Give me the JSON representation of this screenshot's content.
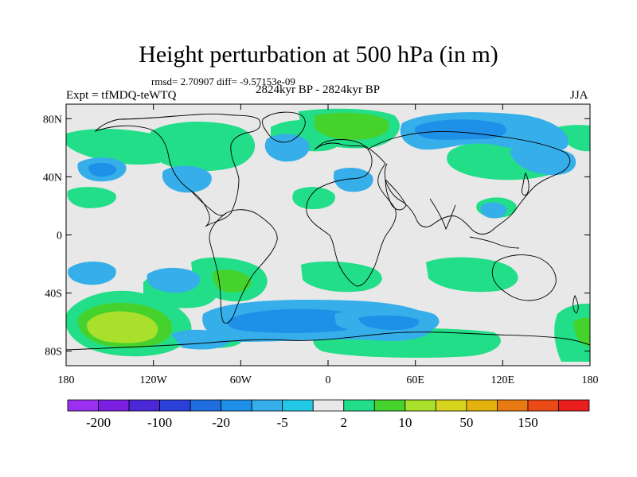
{
  "title": "Height perturbation at 500 hPa (in m)",
  "stats": "rmsd= 2.70907 diff= -9.57153e-09",
  "experiment": "Expt = tfMDQ-teWTQ",
  "period": "2824kyr BP - 2824kyr BP",
  "season": "JJA",
  "axes": {
    "x_ticks": [
      {
        "value": -180,
        "label": "180"
      },
      {
        "value": -120,
        "label": "120W"
      },
      {
        "value": -60,
        "label": "60W"
      },
      {
        "value": 0,
        "label": "0"
      },
      {
        "value": 60,
        "label": "60E"
      },
      {
        "value": 120,
        "label": "120E"
      },
      {
        "value": 180,
        "label": "180"
      }
    ],
    "y_ticks": [
      {
        "value": 80,
        "label": "80N"
      },
      {
        "value": 40,
        "label": "40N"
      },
      {
        "value": 0,
        "label": "0"
      },
      {
        "value": -40,
        "label": "40S"
      },
      {
        "value": -80,
        "label": "80S"
      }
    ],
    "lon_range": [
      -180,
      180
    ],
    "lat_range": [
      -90,
      90
    ]
  },
  "colorbar": {
    "colors": [
      "#9b30f0",
      "#7a1ee0",
      "#4a28d8",
      "#2a40d8",
      "#1e6ee0",
      "#1e90e8",
      "#35aeea",
      "#23c8e6",
      "#e8e8e8",
      "#22de88",
      "#46d22c",
      "#a8e02c",
      "#d8d41e",
      "#e4b20e",
      "#e87a12",
      "#ea4a14",
      "#ea1e1e"
    ],
    "labels": [
      "-200",
      "-100",
      "-20",
      "-5",
      "2",
      "10",
      "50",
      "150"
    ]
  },
  "chart_data": {
    "type": "contour-map",
    "variable": "Height perturbation at 500 hPa",
    "unit": "m",
    "season": "JJA",
    "levels": [
      -200,
      -150,
      -100,
      -50,
      -20,
      -10,
      -5,
      -2,
      2,
      5,
      10,
      20,
      50,
      100,
      150,
      200
    ],
    "features": [
      {
        "lon": -115,
        "lat": -57,
        "sign": 1,
        "level": 20
      },
      {
        "lon": -135,
        "lat": -30,
        "sign": 1,
        "level": 5
      },
      {
        "lon": -80,
        "lat": -26,
        "sign": 1,
        "level": 5
      },
      {
        "lon": -155,
        "lat": -26,
        "sign": -1,
        "level": -5
      },
      {
        "lon": -110,
        "lat": -28,
        "sign": -1,
        "level": -5
      },
      {
        "lon": -45,
        "lat": -62,
        "sign": -1,
        "level": -10
      },
      {
        "lon": 25,
        "lat": -60,
        "sign": -1,
        "level": -5
      },
      {
        "lon": 20,
        "lat": -27,
        "sign": 1,
        "level": 2
      },
      {
        "lon": 90,
        "lat": -27,
        "sign": 1,
        "level": 2
      },
      {
        "lon": 170,
        "lat": -60,
        "sign": 1,
        "level": 5
      },
      {
        "lon": 60,
        "lat": -75,
        "sign": 1,
        "level": 2
      },
      {
        "lon": -150,
        "lat": 42,
        "sign": -1,
        "level": -5
      },
      {
        "lon": -120,
        "lat": 67,
        "sign": 1,
        "level": 5
      },
      {
        "lon": -95,
        "lat": 42,
        "sign": -1,
        "level": -5
      },
      {
        "lon": -85,
        "lat": 70,
        "sign": 1,
        "level": 2
      },
      {
        "lon": -30,
        "lat": 57,
        "sign": -1,
        "level": -5
      },
      {
        "lon": 15,
        "lat": 72,
        "sign": 1,
        "level": 5
      },
      {
        "lon": 80,
        "lat": 70,
        "sign": -1,
        "level": -10
      },
      {
        "lon": 100,
        "lat": 55,
        "sign": 1,
        "level": 5
      },
      {
        "lon": 165,
        "lat": 58,
        "sign": -1,
        "level": -5
      },
      {
        "lon": 30,
        "lat": 38,
        "sign": -1,
        "level": -5
      },
      {
        "lon": 115,
        "lat": 22,
        "sign": -1,
        "level": -5
      },
      {
        "lon": -10,
        "lat": 27,
        "sign": 1,
        "level": 2
      }
    ]
  }
}
